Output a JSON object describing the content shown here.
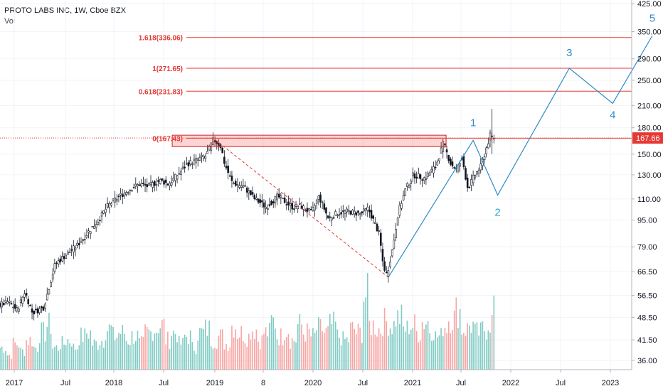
{
  "header": {
    "title": "PROTO LABS INC, 1W, Cboe BZX",
    "volume_label": "Vol"
  },
  "colors": {
    "up": "#26a69a",
    "down": "#ef5350",
    "vol_up": "#80cbc4",
    "vol_down": "#f8a5a4",
    "fib": "#e53935",
    "wave": "#2e8bc7",
    "wave2": "#2aa5c9",
    "price_tag": "#e53935"
  },
  "chart_data": {
    "type": "candlestick",
    "scale": "log",
    "symbol": "PROTO LABS INC",
    "interval": "1W",
    "exchange": "Cboe BZX",
    "y_ticks": [
      425.0,
      350.0,
      290.0,
      250.0,
      210.0,
      180.0,
      150.0,
      130.0,
      110.0,
      95.0,
      79.0,
      66.5,
      56.5,
      48.5,
      41.5,
      36.0
    ],
    "y_tick_labels": [
      "425.00",
      "350.00",
      "290.00",
      "250.00",
      "210.00",
      "180.00",
      "150.00",
      "130.00",
      "110.00",
      "95.00",
      "79.00",
      "66.50",
      "56.50",
      "48.50",
      "41.50",
      "36.00"
    ],
    "x_tick_labels": [
      "2017",
      "Jul",
      "2018",
      "Jul",
      "2019",
      "8",
      "2020",
      "Jul",
      "2021",
      "Jul",
      "2022",
      "Jul",
      "2023"
    ],
    "last_price": 167.66,
    "last_price_label": "167.66",
    "price_path": [
      [
        0,
        52.5
      ],
      [
        5,
        54
      ],
      [
        10,
        51
      ],
      [
        14,
        58
      ],
      [
        18,
        50
      ],
      [
        24,
        52
      ],
      [
        30,
        70
      ],
      [
        36,
        75
      ],
      [
        42,
        80
      ],
      [
        48,
        88
      ],
      [
        53,
        95
      ],
      [
        58,
        105
      ],
      [
        64,
        112
      ],
      [
        70,
        118
      ],
      [
        75,
        122
      ],
      [
        79,
        120
      ],
      [
        86,
        125
      ],
      [
        90,
        122
      ],
      [
        95,
        130
      ],
      [
        100,
        140
      ],
      [
        106,
        145
      ],
      [
        110,
        148
      ],
      [
        114,
        166
      ],
      [
        118,
        158
      ],
      [
        120,
        140
      ],
      [
        124,
        123
      ],
      [
        130,
        120
      ],
      [
        136,
        110
      ],
      [
        142,
        104
      ],
      [
        148,
        112
      ],
      [
        152,
        108
      ],
      [
        156,
        104
      ],
      [
        160,
        105
      ],
      [
        166,
        100
      ],
      [
        170,
        112
      ],
      [
        175,
        96
      ],
      [
        180,
        100
      ],
      [
        186,
        101
      ],
      [
        192,
        99
      ],
      [
        196,
        103
      ],
      [
        200,
        92
      ],
      [
        202,
        86
      ],
      [
        204,
        70
      ],
      [
        206,
        65
      ],
      [
        209,
        78
      ],
      [
        212,
        100
      ],
      [
        216,
        118
      ],
      [
        220,
        130
      ],
      [
        226,
        127
      ],
      [
        232,
        138
      ],
      [
        236,
        162
      ],
      [
        238,
        150
      ],
      [
        240,
        140
      ],
      [
        243,
        135
      ],
      [
        246,
        145
      ],
      [
        249,
        118
      ],
      [
        252,
        128
      ],
      [
        256,
        138
      ],
      [
        259,
        158
      ],
      [
        261,
        172
      ],
      [
        262,
        168
      ]
    ],
    "volume_relative": [
      0.3,
      0.2,
      0.35,
      0.25,
      0.4,
      0.3,
      0.5,
      0.6,
      0.3,
      0.35,
      0.4,
      0.3,
      0.45,
      0.5,
      0.35,
      0.4,
      0.55,
      0.45,
      0.5,
      0.4,
      0.45,
      0.35,
      0.5,
      0.55,
      0.6,
      0.4,
      0.5,
      0.35,
      0.45,
      0.3,
      0.5,
      0.55,
      0.4,
      0.45,
      0.35,
      0.6,
      0.5,
      0.45,
      0.55,
      0.4,
      0.5,
      0.65,
      0.45,
      0.55,
      0.4,
      0.6,
      0.5,
      0.45,
      0.55,
      0.5,
      0.6,
      0.45,
      0.4,
      0.55,
      0.5,
      1.0,
      0.6,
      0.55,
      0.65,
      0.6,
      0.7,
      0.55,
      0.6,
      0.5,
      0.65,
      0.55,
      0.45,
      0.6,
      0.7,
      0.8,
      0.55,
      0.6,
      0.5,
      0.55,
      0.65,
      0.95
    ],
    "resistance_zone": {
      "x_start": 114,
      "x_end": 300,
      "low": 158,
      "high": 171
    },
    "fib_levels": [
      {
        "label": "1.618(336.06)",
        "value": 336.06
      },
      {
        "label": "1(271.65)",
        "value": 271.65
      },
      {
        "label": "0.618(231.83)",
        "value": 231.83
      },
      {
        "label": "0(167.43)",
        "value": 167.43
      }
    ],
    "dashed_decline": {
      "from": [
        114,
        166
      ],
      "to": [
        206,
        64
      ]
    },
    "wave_path": [
      [
        206,
        64
      ],
      [
        251,
        165
      ],
      [
        264,
        113
      ],
      [
        302,
        271.65
      ],
      [
        325,
        213
      ],
      [
        346,
        340
      ]
    ],
    "wave_labels": [
      {
        "text": "1",
        "x": 251,
        "y": 182,
        "color": "wave"
      },
      {
        "text": "2",
        "x": 264,
        "y": 98,
        "color": "wave2"
      },
      {
        "text": "3",
        "x": 302,
        "y": 295,
        "color": "wave"
      },
      {
        "text": "4",
        "x": 325,
        "y": 192,
        "color": "wave"
      },
      {
        "text": "5",
        "x": 346,
        "y": 375,
        "color": "wave"
      }
    ]
  }
}
